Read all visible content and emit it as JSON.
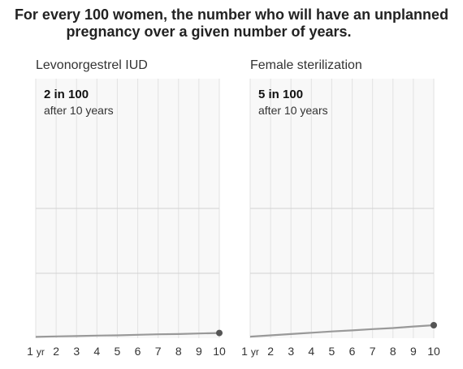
{
  "title_lines": [
    "For every 100 women, the number who will have an unplanned",
    "pregnancy over a given number of years."
  ],
  "chart_data": [
    {
      "type": "line",
      "title": "Levonorgestrel IUD",
      "callout_main": "2 in 100",
      "callout_sub": "after 10 years",
      "x": [
        1,
        2,
        3,
        4,
        5,
        6,
        7,
        8,
        9,
        10
      ],
      "x_tick_labels": [
        "1 yr",
        "2",
        "3",
        "4",
        "5",
        "6",
        "7",
        "8",
        "9",
        "10"
      ],
      "values": [
        0.5,
        0.7,
        0.8,
        1.0,
        1.1,
        1.3,
        1.5,
        1.6,
        1.8,
        2.0
      ],
      "ylim": [
        0,
        100
      ],
      "grid": true
    },
    {
      "type": "line",
      "title": "Female sterilization",
      "callout_main": "5 in 100",
      "callout_sub": "after 10 years",
      "x": [
        1,
        2,
        3,
        4,
        5,
        6,
        7,
        8,
        9,
        10
      ],
      "x_tick_labels": [
        "1 yr",
        "2",
        "3",
        "4",
        "5",
        "6",
        "7",
        "8",
        "9",
        "10"
      ],
      "values": [
        0.6,
        1.1,
        1.6,
        2.1,
        2.6,
        3.0,
        3.5,
        3.9,
        4.5,
        5.0
      ],
      "ylim": [
        0,
        100
      ],
      "grid": true
    }
  ]
}
